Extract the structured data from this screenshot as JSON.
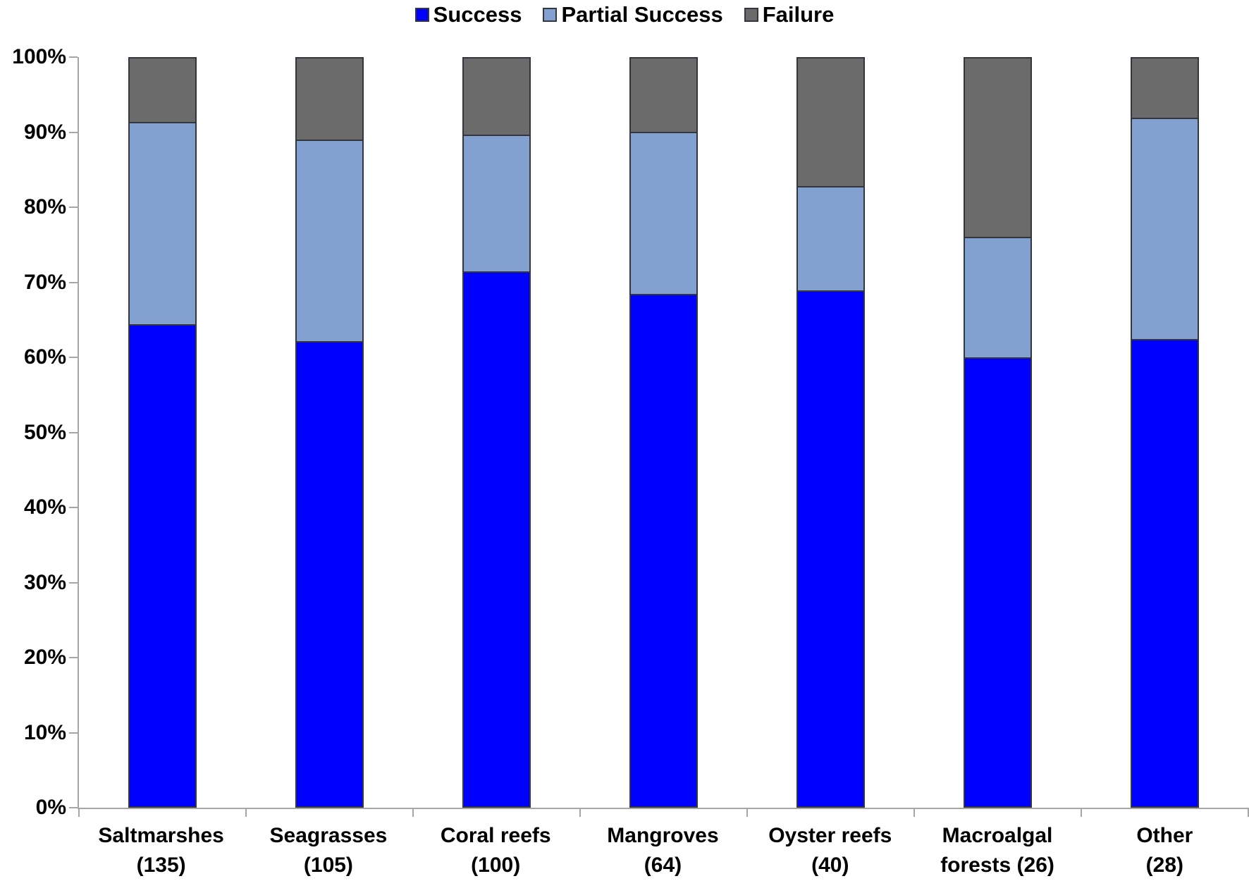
{
  "chart_data": {
    "type": "bar",
    "variant": "stacked-100-percent",
    "categories": [
      "Saltmarshes (135)",
      "Seagrasses (105)",
      "Coral reefs (100)",
      "Mangroves (64)",
      "Oyster reefs (40)",
      "Macroalgal forests (26)",
      "Other (28)"
    ],
    "category_label_lines": [
      [
        "Saltmarshes",
        "(135)"
      ],
      [
        "Seagrasses",
        "(105)"
      ],
      [
        "Coral reefs",
        "(100)"
      ],
      [
        "Mangroves",
        "(64)"
      ],
      [
        "Oyster reefs",
        "(40)"
      ],
      [
        "Macroalgal",
        "forests (26)"
      ],
      [
        "Other",
        "(28)"
      ]
    ],
    "sample_sizes": [
      135,
      105,
      100,
      64,
      40,
      26,
      28
    ],
    "series": [
      {
        "name": "Success",
        "color": "#0000FE",
        "values": [
          64.5,
          62.2,
          71.5,
          68.5,
          69.0,
          60.0,
          62.5
        ]
      },
      {
        "name": "Partial Success",
        "color": "#82A1D1",
        "values": [
          27.0,
          27.0,
          18.3,
          21.7,
          13.9,
          16.2,
          29.6
        ]
      },
      {
        "name": "Failure",
        "color": "#6B6B6B",
        "values": [
          8.5,
          10.8,
          10.2,
          9.8,
          17.1,
          23.8,
          7.9
        ]
      }
    ],
    "y_axis": {
      "ticks": [
        "0%",
        "10%",
        "20%",
        "30%",
        "40%",
        "50%",
        "60%",
        "70%",
        "80%",
        "90%",
        "100%"
      ],
      "min": 0,
      "max": 100,
      "unit": "%"
    },
    "xlabel": "",
    "ylabel": "",
    "title": "",
    "legend_position": "top-center",
    "grid": false
  },
  "colors": {
    "success": "#0000FE",
    "partial_success": "#82A1D1",
    "failure": "#6B6B6B",
    "segment_border": "#33373D",
    "axis_line": "#A6A6A6",
    "text": "#000000",
    "background": "#FFFFFF"
  }
}
